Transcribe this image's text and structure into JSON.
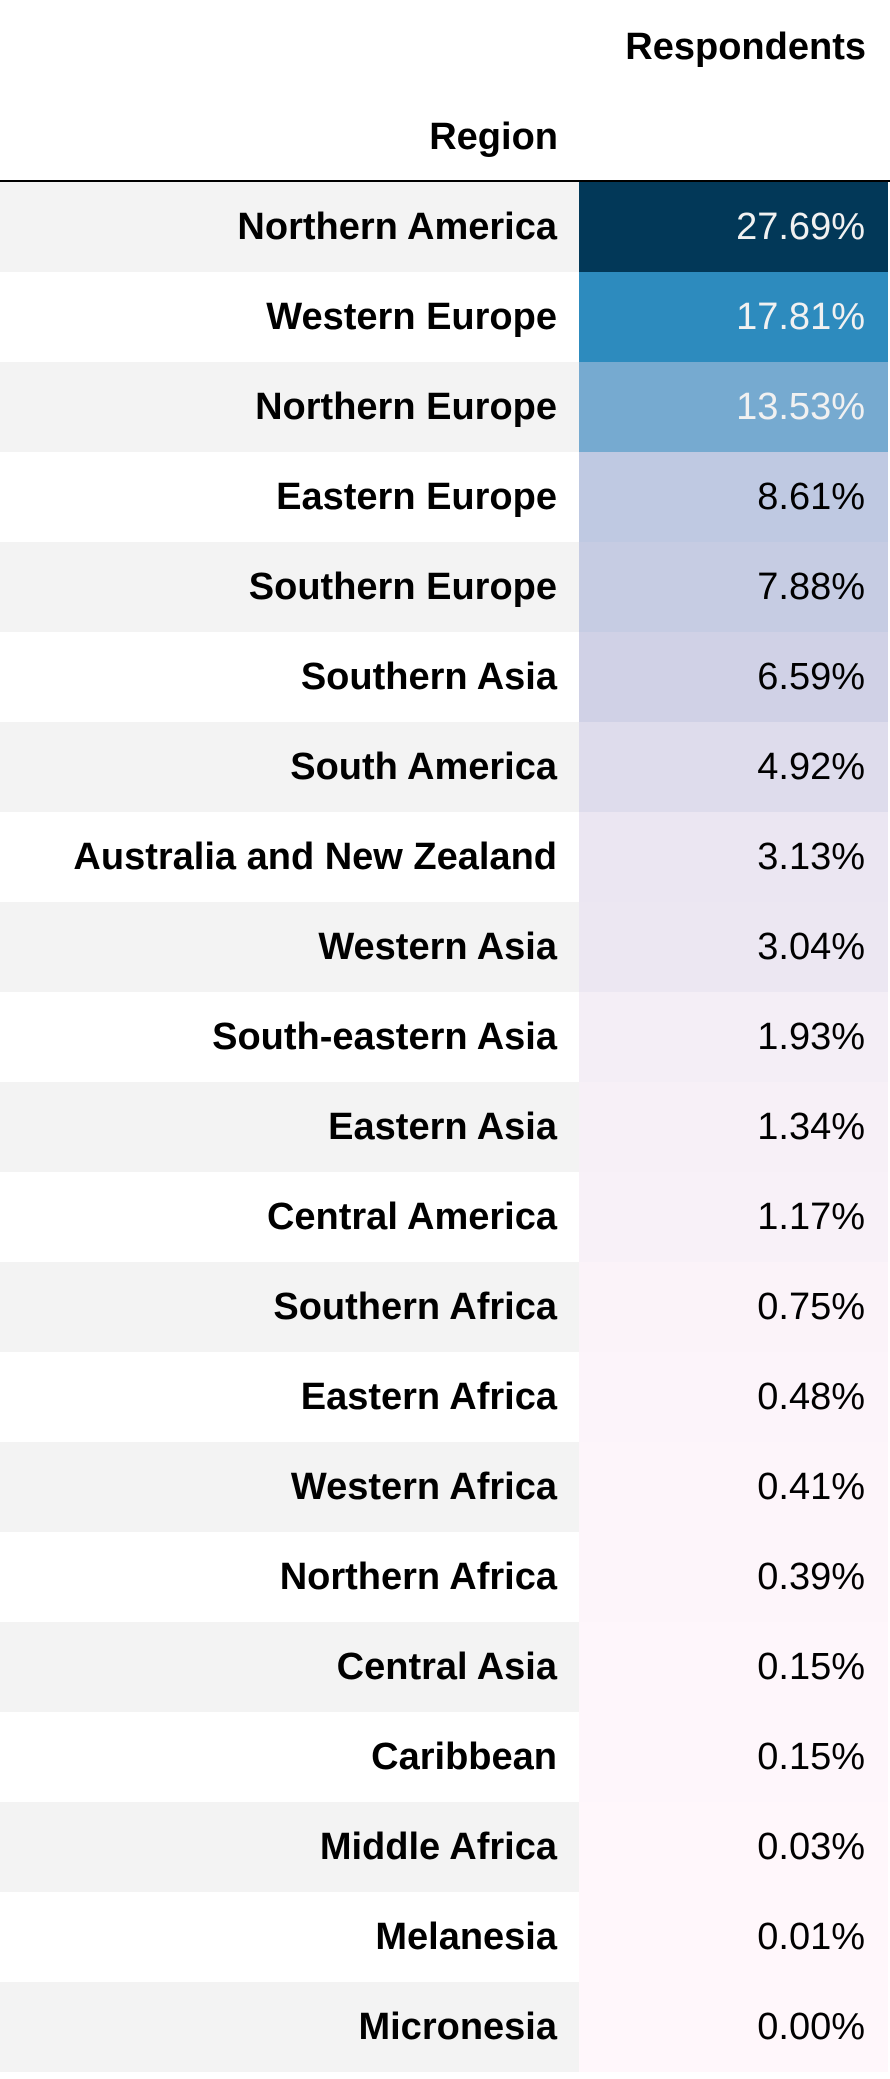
{
  "table": {
    "column_header": "Respondents",
    "index_header": "Region",
    "rows": [
      {
        "region": "Northern America",
        "value": "27.69%",
        "bg": "#023858",
        "fg": "#f1f1f1"
      },
      {
        "region": "Western Europe",
        "value": "17.81%",
        "bg": "#2d8bbe",
        "fg": "#f1f1f1"
      },
      {
        "region": "Northern Europe",
        "value": "13.53%",
        "bg": "#76aad0",
        "fg": "#f1f1f1"
      },
      {
        "region": "Eastern Europe",
        "value": "8.61%",
        "bg": "#bfc9e2",
        "fg": "#000000"
      },
      {
        "region": "Southern Europe",
        "value": "7.88%",
        "bg": "#c6cce3",
        "fg": "#000000"
      },
      {
        "region": "Southern Asia",
        "value": "6.59%",
        "bg": "#d0d1e6",
        "fg": "#000000"
      },
      {
        "region": "South America",
        "value": "4.92%",
        "bg": "#dedcec",
        "fg": "#000000"
      },
      {
        "region": "Australia and New Zealand",
        "value": "3.13%",
        "bg": "#ebe6f2",
        "fg": "#000000"
      },
      {
        "region": "Western Asia",
        "value": "3.04%",
        "bg": "#ece7f2",
        "fg": "#000000"
      },
      {
        "region": "South-eastern Asia",
        "value": "1.93%",
        "bg": "#f4eef6",
        "fg": "#000000"
      },
      {
        "region": "Eastern Asia",
        "value": "1.34%",
        "bg": "#f7f0f7",
        "fg": "#000000"
      },
      {
        "region": "Central America",
        "value": "1.17%",
        "bg": "#f8f1f8",
        "fg": "#000000"
      },
      {
        "region": "Southern Africa",
        "value": "0.75%",
        "bg": "#fbf3f9",
        "fg": "#000000"
      },
      {
        "region": "Eastern Africa",
        "value": "0.48%",
        "bg": "#fcf4fa",
        "fg": "#000000"
      },
      {
        "region": "Western Africa",
        "value": "0.41%",
        "bg": "#fdf5fa",
        "fg": "#000000"
      },
      {
        "region": "Northern Africa",
        "value": "0.39%",
        "bg": "#fdf5fa",
        "fg": "#000000"
      },
      {
        "region": "Central Asia",
        "value": "0.15%",
        "bg": "#fef6fb",
        "fg": "#000000"
      },
      {
        "region": "Caribbean",
        "value": "0.15%",
        "bg": "#fef6fb",
        "fg": "#000000"
      },
      {
        "region": "Middle Africa",
        "value": "0.03%",
        "bg": "#fff7fb",
        "fg": "#000000"
      },
      {
        "region": "Melanesia",
        "value": "0.01%",
        "bg": "#fff7fb",
        "fg": "#000000"
      },
      {
        "region": "Micronesia",
        "value": "0.00%",
        "bg": "#fff7fb",
        "fg": "#000000"
      }
    ]
  }
}
